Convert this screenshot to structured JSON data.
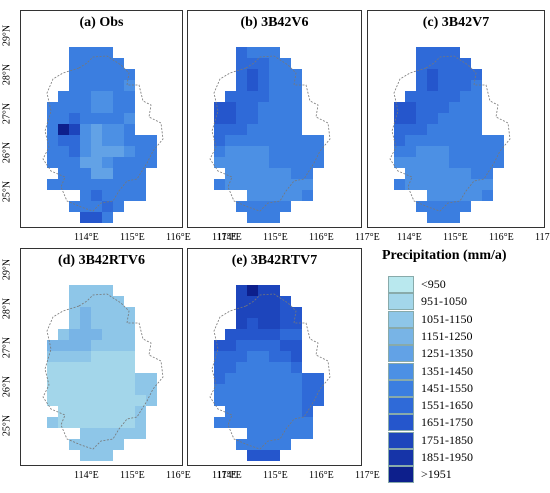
{
  "palette": [
    "#b9e8ee",
    "#a3d6ea",
    "#8ec6e8",
    "#78b4e6",
    "#62a2e6",
    "#4c90e4",
    "#3b7ee0",
    "#2f6ad8",
    "#2556cc",
    "#1d45bc",
    "#1634a8",
    "#0d1f8c"
  ],
  "legend": {
    "title": "Precipitation (mm/a)",
    "items": [
      "<950",
      "951-1050",
      "1051-1150",
      "1151-1250",
      "1251-1350",
      "1351-1450",
      "1451-1550",
      "1551-1650",
      "1651-1750",
      "1751-1850",
      "1851-1950",
      ">1951"
    ]
  },
  "axes": {
    "y_labels": [
      "29°N",
      "28°N",
      "27°N",
      "26°N",
      "25°N"
    ],
    "x_labels": [
      "114°E",
      "115°E",
      "116°E",
      "117°E"
    ]
  },
  "panels": [
    {
      "title": "(a) Obs",
      "grid": [
        "..6666.....",
        "..66666....",
        "..666666...",
        "..666665...",
        ".6665566...",
        "66665566...",
        "66766665...",
        "6B954556...",
        "6775455666.",
        "6675444566.",
        "6664456666.",
        ".66644666..",
        "666666666..",
        "...676666..",
        "..66676....",
        "...886....."
      ]
    },
    {
      "title": "(b) 3B42V6",
      "grid": [
        "..7666.....",
        "..77766....",
        "..787666...",
        "..787666...",
        ".7777666...",
        "88776666...",
        "88776666...",
        "77766666...",
        "7666666666.",
        "6555566666.",
        "5555566666.",
        ".55555566..",
        "655555555..",
        "...555556..",
        "..66666....",
        "...666....."
      ]
    },
    {
      "title": "(c) 3B42V7",
      "grid": [
        "..7777.....",
        "..77777....",
        "..787777...",
        "..787776...",
        ".7777766...",
        "88777666...",
        "88776666...",
        "77766666...",
        "7666666666.",
        "6655566666.",
        "5555566666.",
        ".55555566..",
        "655555555..",
        "...555556..",
        "..66666....",
        "...666....."
      ]
    },
    {
      "title": "(d) 3B42RTV6",
      "grid": [
        "..2222.....",
        "..22222....",
        "..232222...",
        "..232222...",
        ".2333222...",
        "33332222...",
        "22221111...",
        "11111111...",
        "1111111122.",
        "1111111122.",
        "1111111112.",
        ".11111112..",
        "211111112..",
        "...222222..",
        "..22222....",
        "...222....."
      ]
    },
    {
      "title": "(e) 3B42RTV7",
      "grid": [
        "..9B99.....",
        "..99998....",
        "..999988...",
        "..989988...",
        ".8888877...",
        "88777788...",
        "77766778...",
        "77666667...",
        "7666666677.",
        "6666666677.",
        "6666666677.",
        ".66666667..",
        "666666666..",
        "...666666..",
        "..66666....",
        "...888....."
      ]
    }
  ]
}
